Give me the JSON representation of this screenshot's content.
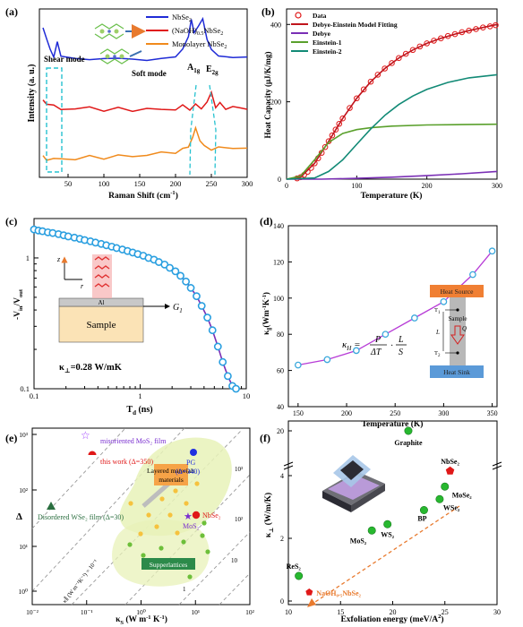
{
  "chart_data": [
    {
      "panel": "(a)",
      "type": "line",
      "xlabel": "Raman Shift (cm⁻¹)",
      "ylabel": "Intensity (a. u.)",
      "xlim": [
        10,
        300
      ],
      "xticks": [
        50,
        100,
        150,
        200,
        250,
        300
      ],
      "series": [
        {
          "name": "NbSe₂",
          "color": "#1f2bd6",
          "x": [
            15,
            20,
            25,
            30,
            35,
            40,
            60,
            80,
            100,
            120,
            140,
            160,
            180,
            200,
            210,
            218,
            222,
            226,
            232,
            238,
            244,
            250,
            260,
            280,
            300
          ],
          "y": [
            2.9,
            2.7,
            2.45,
            2.35,
            2.6,
            2.35,
            2.3,
            2.25,
            2.32,
            2.27,
            2.3,
            2.25,
            2.28,
            2.35,
            2.45,
            2.75,
            3.05,
            2.8,
            2.95,
            3.05,
            2.7,
            2.45,
            2.35,
            2.32,
            2.3
          ]
        },
        {
          "name": "(NaOH)₀.₅NbSe₂",
          "color": "#e01818",
          "x": [
            15,
            20,
            30,
            40,
            60,
            80,
            100,
            120,
            140,
            160,
            180,
            200,
            210,
            220,
            228,
            236,
            244,
            250,
            256,
            262,
            270,
            280,
            290,
            300
          ],
          "y": [
            1.45,
            1.42,
            1.35,
            1.3,
            1.3,
            1.32,
            1.28,
            1.3,
            1.27,
            1.3,
            1.28,
            1.3,
            1.35,
            1.3,
            1.38,
            1.3,
            1.45,
            1.6,
            1.35,
            1.4,
            1.3,
            1.35,
            1.3,
            1.32
          ]
        },
        {
          "name": "Monolayer NbSe₂",
          "color": "#f08a1c",
          "x": [
            15,
            20,
            30,
            40,
            60,
            80,
            100,
            120,
            140,
            160,
            180,
            200,
            210,
            218,
            224,
            228,
            234,
            240,
            250,
            260,
            280,
            300
          ],
          "y": [
            0.35,
            0.3,
            0.32,
            0.3,
            0.32,
            0.35,
            0.33,
            0.38,
            0.35,
            0.4,
            0.42,
            0.45,
            0.5,
            0.55,
            0.75,
            0.9,
            0.7,
            0.55,
            0.5,
            0.55,
            0.5,
            0.55
          ]
        }
      ],
      "annotations": [
        "Shear mode",
        "Soft mode",
        "A₁g",
        "E₂g"
      ]
    },
    {
      "panel": "(b)",
      "type": "line",
      "xlabel": "Temperature (K)",
      "ylabel": "Heat Capacity (μJ/K/mg)",
      "xlim": [
        0,
        300
      ],
      "ylim": [
        0,
        440
      ],
      "xticks": [
        0,
        100,
        200,
        300
      ],
      "yticks": [
        0,
        200,
        400
      ],
      "series": [
        {
          "name": "Data",
          "style": "open-circle",
          "color": "#e01818",
          "x": [
            15,
            20,
            25,
            30,
            35,
            40,
            45,
            50,
            55,
            60,
            65,
            70,
            75,
            80,
            90,
            100,
            110,
            120,
            130,
            140,
            150,
            160,
            170,
            180,
            190,
            200,
            210,
            220,
            230,
            240,
            250,
            260,
            270,
            280,
            290,
            298
          ],
          "y": [
            2,
            5,
            11,
            19,
            29,
            41,
            54,
            68,
            83,
            98,
            113,
            128,
            143,
            157,
            184,
            209,
            232,
            252,
            270,
            286,
            300,
            313,
            324,
            334,
            343,
            351,
            358,
            364,
            370,
            375,
            380,
            384,
            388,
            392,
            395,
            398
          ]
        },
        {
          "name": "Debye-Einstein Model Fitting",
          "color": "#c0141c",
          "x": [
            0,
            20,
            40,
            60,
            80,
            100,
            120,
            140,
            160,
            180,
            200,
            220,
            240,
            260,
            280,
            300
          ],
          "y": [
            0,
            5,
            41,
            98,
            157,
            209,
            252,
            286,
            313,
            334,
            351,
            364,
            375,
            384,
            392,
            400
          ]
        },
        {
          "name": "Debye",
          "color": "#7a2fb5",
          "x": [
            0,
            50,
            100,
            150,
            200,
            250,
            300
          ],
          "y": [
            0,
            0,
            2,
            5,
            9,
            14,
            20
          ]
        },
        {
          "name": "Einstein-1",
          "color": "#5aa02c",
          "x": [
            0,
            20,
            40,
            60,
            80,
            100,
            120,
            150,
            200,
            250,
            300
          ],
          "y": [
            0,
            8,
            50,
            95,
            118,
            128,
            133,
            137,
            140,
            141,
            142
          ]
        },
        {
          "name": "Einstein-2",
          "color": "#128a76",
          "x": [
            0,
            40,
            60,
            80,
            100,
            120,
            140,
            160,
            180,
            200,
            230,
            260,
            300
          ],
          "y": [
            0,
            3,
            20,
            50,
            90,
            130,
            165,
            193,
            215,
            232,
            250,
            262,
            270
          ]
        }
      ]
    },
    {
      "panel": "(c)",
      "type": "scatter",
      "xlabel": "Tₑ (ns)",
      "ylabel": "-Vᵢₙ/Vₒᵤₜ",
      "xscale": "log",
      "yscale": "log",
      "xlim": [
        0.1,
        10
      ],
      "ylim": [
        0.1,
        2
      ],
      "xticks": [
        0.1,
        1,
        10
      ],
      "yticks": [
        0.1,
        1
      ],
      "x": [
        0.1,
        0.11,
        0.12,
        0.135,
        0.15,
        0.17,
        0.19,
        0.21,
        0.24,
        0.27,
        0.3,
        0.34,
        0.38,
        0.43,
        0.48,
        0.54,
        0.6,
        0.68,
        0.76,
        0.85,
        0.95,
        1.07,
        1.2,
        1.35,
        1.5,
        1.7,
        1.9,
        2.15,
        2.4,
        2.7,
        3.0,
        3.4,
        3.8,
        4.3,
        4.8,
        5.4,
        6.0,
        6.7,
        7.4,
        8.0
      ],
      "y": [
        1.65,
        1.62,
        1.6,
        1.57,
        1.55,
        1.52,
        1.49,
        1.46,
        1.43,
        1.4,
        1.37,
        1.34,
        1.31,
        1.28,
        1.25,
        1.22,
        1.19,
        1.16,
        1.13,
        1.1,
        1.07,
        1.04,
        1.0,
        0.97,
        0.93,
        0.89,
        0.84,
        0.79,
        0.73,
        0.66,
        0.59,
        0.51,
        0.43,
        0.35,
        0.28,
        0.21,
        0.16,
        0.125,
        0.105,
        0.1
      ],
      "annotations": [
        "z",
        "r",
        "Al",
        "Sample",
        "G₁",
        "κ⊥=0.28 W/mK"
      ]
    },
    {
      "panel": "(d)",
      "type": "scatter",
      "xlabel": "Temperature (K)",
      "ylabel": "κ∥(Wm⁻¹K⁻¹)",
      "xlim": [
        140,
        355
      ],
      "ylim": [
        40,
        140
      ],
      "xticks": [
        150,
        200,
        250,
        300,
        350
      ],
      "yticks": [
        40,
        60,
        80,
        100,
        120,
        140
      ],
      "x": [
        150,
        180,
        210,
        240,
        270,
        300,
        330,
        350
      ],
      "y": [
        63,
        66,
        71,
        80,
        89,
        98,
        113,
        126
      ],
      "annotations": [
        "Heat Source",
        "Heat Sink",
        "Sample",
        "T₁",
        "T₂",
        "L",
        "Q",
        "κ∥ = P/ΔT · L/S"
      ]
    },
    {
      "panel": "(e)",
      "type": "scatter",
      "xlabel": "κ_S (W m⁻¹ K⁻¹)",
      "ylabel": "Δ",
      "xscale": "log",
      "yscale": "log",
      "xlim": [
        0.01,
        100
      ],
      "ylim": [
        0.5,
        1000
      ],
      "xticks": [
        "10⁻²",
        "10⁻¹",
        "10⁰",
        "10¹",
        "10²"
      ],
      "yticks": [
        "10⁰",
        "10¹",
        "10²",
        "10³"
      ],
      "points": [
        {
          "label": "misoriented MoS₂ film",
          "x": 0.3,
          "y": 900
        },
        {
          "label": "this work (Δ=350)",
          "x": 0.3,
          "y": 350
        },
        {
          "label": "PG (Δ=340)",
          "x": 6,
          "y": 340
        },
        {
          "label": "Disordered WSe₂ film (Δ=30)",
          "x": 0.05,
          "y": 30
        },
        {
          "label": "NbSe₂",
          "x": 6,
          "y": 16
        },
        {
          "label": "MoS₂",
          "x": 4.5,
          "y": 17
        }
      ],
      "region_labels": [
        "Layered materials",
        "Supperlattices"
      ],
      "contour_labels": [
        "10³",
        "10²",
        "10",
        "1"
      ],
      "line_label": "κ∥ (W m⁻¹K⁻¹) = 10⁻¹"
    },
    {
      "panel": "(f)",
      "type": "scatter",
      "xlabel": "Exfoliation energy (meV/A²)",
      "ylabel": "κ⊥ (W/m/K)",
      "xlim": [
        10,
        30
      ],
      "xticks": [
        10,
        15,
        20,
        25,
        30
      ],
      "yticks": [
        0,
        2,
        4,
        20
      ],
      "points": [
        {
          "label": "Graphite",
          "x": 21.5,
          "y": 20.0
        },
        {
          "label": "NbSe₂",
          "x": 25.5,
          "y": 4.15
        },
        {
          "label": "MoSe₂",
          "x": 25,
          "y": 3.65
        },
        {
          "label": "WSe₂",
          "x": 24.5,
          "y": 3.25
        },
        {
          "label": "BP",
          "x": 23,
          "y": 2.9
        },
        {
          "label": "WS₂",
          "x": 19.5,
          "y": 2.45
        },
        {
          "label": "MoS₂",
          "x": 18,
          "y": 2.25
        },
        {
          "label": "ReS₂",
          "x": 11,
          "y": 0.8
        },
        {
          "label": "NaOH₀.₅NbSe₂",
          "x": 12,
          "y": 0.28
        }
      ]
    }
  ],
  "labels": {
    "a": {
      "panel": "(a)",
      "xlabel": "Raman Shift (cm",
      "xlabel_sup": "-1",
      "xlabel_end": ")",
      "ylabel": "Intensity (a. u.)",
      "legend": [
        "NbSe",
        "(NaOH)",
        "Monolayer NbSe"
      ],
      "shear": "Shear mode",
      "soft": "Soft mode",
      "a1g": "A",
      "e2g": "E"
    },
    "b": {
      "panel": "(b)",
      "xlabel": "Temperature (K)",
      "ylabel": "Heat Capacity (μJ/K/mg)",
      "legend": [
        "Data",
        "Debye-Einstein Model Fitting",
        "Debye",
        "Einstein-1",
        "Einstein-2"
      ]
    },
    "c": {
      "panel": "(c)",
      "xlabel": "T",
      "ylabel": "-V",
      "kappa": "κ",
      "kappa_val": "=0.28 W/mK",
      "al": "Al",
      "sample": "Sample",
      "z": "z",
      "r": "r",
      "g": "G"
    },
    "d": {
      "panel": "(d)",
      "xlabel": "Temperature (K)",
      "ylabel": "κ",
      "source": "Heat Source",
      "sink": "Heat Sink",
      "sample": "Sample",
      "t1": "T",
      "t2": "T",
      "l": "L",
      "q": "Q",
      "formula": "κ"
    },
    "e": {
      "panel": "(e)",
      "xlabel": "κ",
      "ylabel": "Δ"
    },
    "f": {
      "panel": "(f)",
      "xlabel": "Exfoliation energy (meV/A",
      "xlabel_end": ")",
      "ylabel": "κ"
    }
  },
  "colors": {
    "blue": "#1f2bd6",
    "red": "#e01818",
    "orange": "#f08a1c",
    "purple": "#7a2fb5",
    "green": "#5aa02c",
    "teal": "#128a76",
    "circle": "#2a9fe0",
    "cyan": "#27c2d0"
  }
}
